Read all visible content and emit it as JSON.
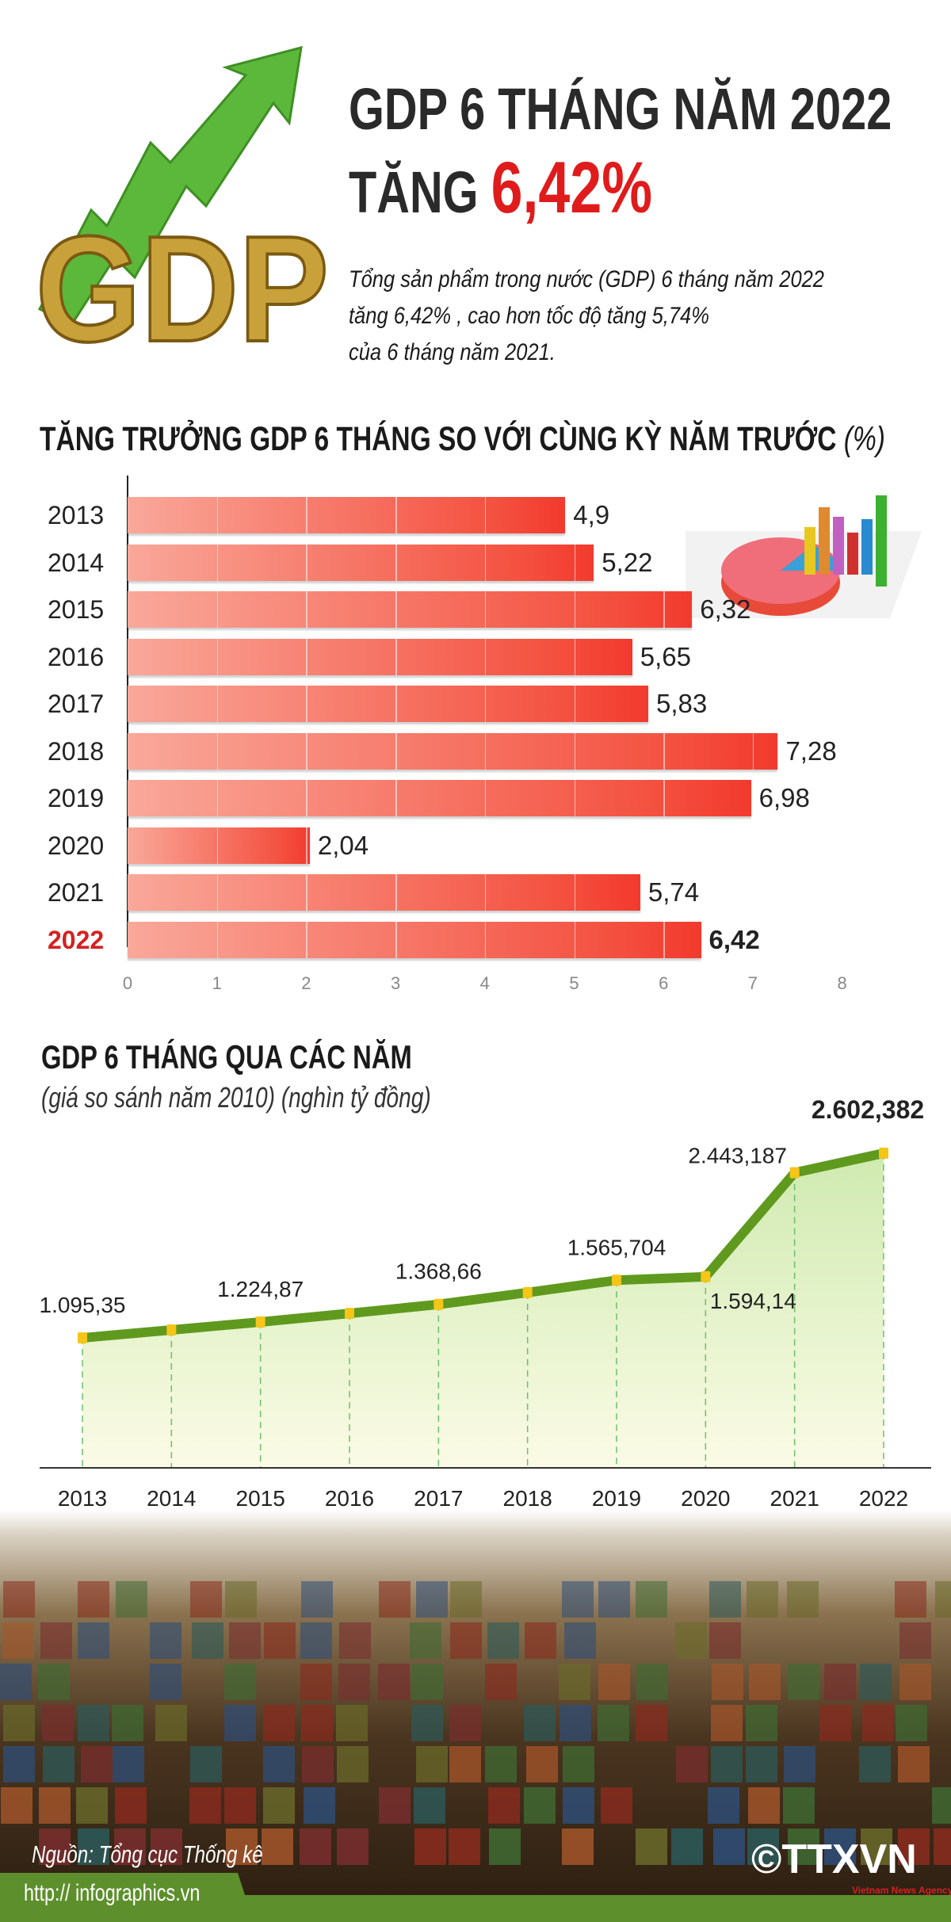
{
  "header": {
    "title_line1": "GDP 6 THÁNG NĂM 2022",
    "title_line2_prefix": "TĂNG",
    "title_line2_value": "6,42%",
    "illustration_text": "GDP",
    "summary": [
      "Tổng sản phẩm trong nước (GDP) 6 tháng năm 2022",
      "tăng 6,42% , cao hơn tốc độ tăng 5,74%",
      "của 6 tháng năm 2021."
    ]
  },
  "colors": {
    "accent_red": "#e01b1b",
    "bar_start": "#f9a89a",
    "bar_end": "#f23a2e",
    "line_green": "#5f9a1e",
    "marker_yellow": "#f5c518",
    "brand_green": "#5d8f2c"
  },
  "chart_data": [
    {
      "type": "bar",
      "orientation": "horizontal",
      "title": "TĂNG TRƯỞNG GDP 6 THÁNG SO VỚI CÙNG KỲ NĂM TRƯỚC",
      "unit": "(%)",
      "categories": [
        "2013",
        "2014",
        "2015",
        "2016",
        "2017",
        "2018",
        "2019",
        "2020",
        "2021",
        "2022"
      ],
      "values": [
        4.9,
        5.22,
        6.32,
        5.65,
        5.83,
        7.28,
        6.98,
        2.04,
        5.74,
        6.42
      ],
      "value_labels": [
        "4,9",
        "5,22",
        "6,32",
        "5,65",
        "5,83",
        "7,28",
        "6,98",
        "2,04",
        "5,74",
        "6,42"
      ],
      "highlight": "2022",
      "xlim": [
        0,
        8
      ],
      "x_ticks": [
        "0",
        "1",
        "2",
        "3",
        "4",
        "5",
        "6",
        "7",
        "8"
      ]
    },
    {
      "type": "area",
      "title": "GDP 6 THÁNG QUA CÁC NĂM",
      "subtitle": "(giá so sánh năm 2010) (nghìn tỷ đồng)",
      "categories": [
        "2013",
        "2014",
        "2015",
        "2016",
        "2017",
        "2018",
        "2019",
        "2020",
        "2021",
        "2022"
      ],
      "values": [
        1095.35,
        1160,
        1224.87,
        1295,
        1368.66,
        1465,
        1565.704,
        1594.14,
        2443.187,
        2602.382
      ],
      "value_labels": [
        "1.095,35",
        "",
        "1.224,87",
        "",
        "1.368,66",
        "",
        "1.565,704",
        "1.594,14",
        "2.443,187",
        "2.602,382"
      ],
      "highlight": "2022",
      "grid": false
    }
  ],
  "footer": {
    "source": "Nguồn: Tổng cục Thống kê",
    "url": "http:// infographics.vn",
    "logo_text": "©TTXVN",
    "logo_subtext": "Vietnam News Agency"
  }
}
